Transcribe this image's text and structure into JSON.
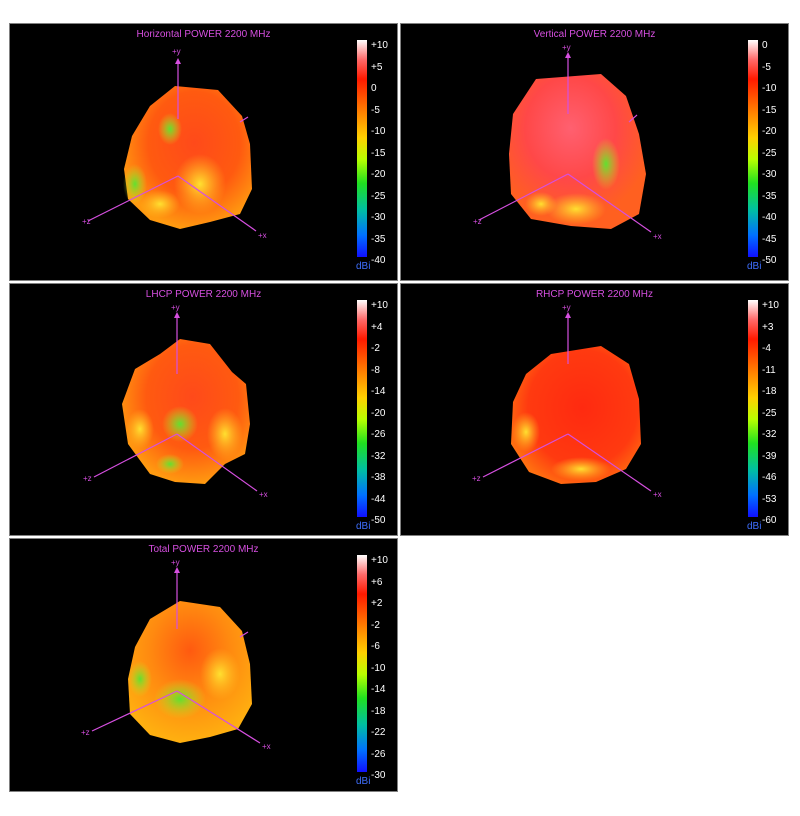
{
  "colors": {
    "axis": "#d64fe0",
    "unit": "#3f6fff",
    "scale": [
      "#ffffff",
      "#ff5a5a",
      "#ff1a00",
      "#ff7a00",
      "#ffd000",
      "#b4ff00",
      "#19e619",
      "#00c0a0",
      "#0060ff",
      "#1010ff"
    ]
  },
  "axes": {
    "y": "+y",
    "x": "+x",
    "z": "+z"
  },
  "panels": [
    {
      "title": "Horizontal POWER 2200  MHz",
      "ticks": [
        "+10",
        "+5",
        "0",
        "-5",
        "-10",
        "-15",
        "-20",
        "-25",
        "-30",
        "-35",
        "-40"
      ],
      "unit": "dBi"
    },
    {
      "title": "Vertical POWER 2200  MHz",
      "ticks": [
        "0",
        "-5",
        "-10",
        "-15",
        "-20",
        "-25",
        "-30",
        "-35",
        "-40",
        "-45",
        "-50"
      ],
      "unit": "dBi"
    },
    {
      "title": "LHCP POWER 2200  MHz",
      "ticks": [
        "+10",
        "+4",
        "-2",
        "-8",
        "-14",
        "-20",
        "-26",
        "-32",
        "-38",
        "-44",
        "-50"
      ],
      "unit": "dBi"
    },
    {
      "title": "RHCP POWER 2200  MHz",
      "ticks": [
        "+10",
        "+3",
        "-4",
        "-11",
        "-18",
        "-25",
        "-32",
        "-39",
        "-46",
        "-53",
        "-60"
      ],
      "unit": "dBi"
    },
    {
      "title": "Total POWER 2200  MHz",
      "ticks": [
        "+10",
        "+6",
        "+2",
        "-2",
        "-6",
        "-10",
        "-14",
        "-18",
        "-22",
        "-26",
        "-30"
      ],
      "unit": "dBi"
    }
  ]
}
